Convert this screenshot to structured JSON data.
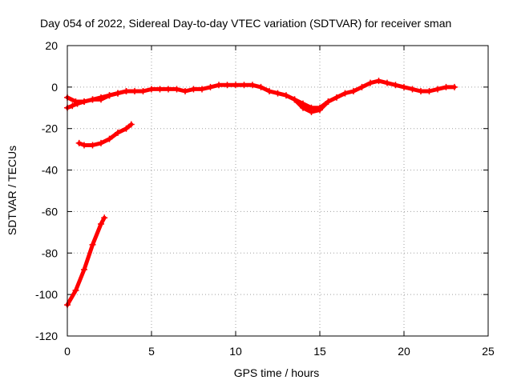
{
  "chart_data": {
    "type": "scatter",
    "title": "Day 054 of 2022, Sidereal Day-to-day VTEC variation (SDTVAR) for receiver sman",
    "xlabel": "GPS time / hours",
    "ylabel": "SDTVAR / TECUs",
    "xlim": [
      0,
      25
    ],
    "ylim": [
      -120,
      20
    ],
    "xticks": [
      0,
      5,
      10,
      15,
      20,
      25
    ],
    "yticks": [
      20,
      0,
      -20,
      -40,
      -60,
      -80,
      -100,
      -120
    ],
    "grid": true,
    "marker": "plus",
    "color": "#ff0000",
    "series": [
      {
        "name": "main-track",
        "x": [
          0.0,
          0.5,
          1.0,
          1.5,
          2.0,
          2.5,
          3.0,
          3.5,
          4.0,
          4.5,
          5.0,
          5.5,
          6.0,
          6.5,
          7.0,
          7.5,
          8.0,
          8.5,
          9.0,
          9.5,
          10.0,
          10.5,
          11.0,
          11.5,
          12.0,
          12.5,
          13.0,
          13.5,
          14.0,
          14.5,
          15.0,
          15.5,
          16.0,
          16.5,
          17.0,
          17.5,
          18.0,
          18.5,
          19.0,
          19.5,
          20.0,
          20.5,
          21.0,
          21.5,
          22.0,
          22.5,
          23.0
        ],
        "y": [
          -5,
          -7,
          -7,
          -6,
          -6,
          -4,
          -3,
          -2,
          -2,
          -2,
          -1,
          -1,
          -1,
          -1,
          -2,
          -1,
          -1,
          0,
          1,
          1,
          1,
          1,
          1,
          0,
          -2,
          -3,
          -4,
          -6,
          -8,
          -10,
          -10,
          -7,
          -5,
          -3,
          -2,
          0,
          2,
          3,
          2,
          1,
          0,
          -1,
          -2,
          -2,
          -1,
          0,
          0
        ]
      },
      {
        "name": "lower-branch",
        "x": [
          0.0,
          0.3,
          0.6,
          1.0,
          1.5,
          2.0,
          2.5,
          3.0,
          3.5
        ],
        "y": [
          -10,
          -9,
          -8,
          -7,
          -6,
          -5,
          -4,
          -3,
          -2
        ]
      },
      {
        "name": "dip-branch",
        "x": [
          13.5,
          14.0,
          14.5,
          15.0,
          15.5
        ],
        "y": [
          -6,
          -10,
          -12,
          -11,
          -7
        ]
      },
      {
        "name": "second-track",
        "x": [
          0.7,
          1.0,
          1.5,
          2.0,
          2.5,
          3.0,
          3.5,
          3.8
        ],
        "y": [
          -27,
          -28,
          -28,
          -27,
          -25,
          -22,
          -20,
          -18
        ]
      },
      {
        "name": "steep-track",
        "x": [
          0.0,
          0.5,
          1.0,
          1.5,
          2.0,
          2.2
        ],
        "y": [
          -105,
          -98,
          -88,
          -76,
          -66,
          -63
        ]
      }
    ]
  }
}
